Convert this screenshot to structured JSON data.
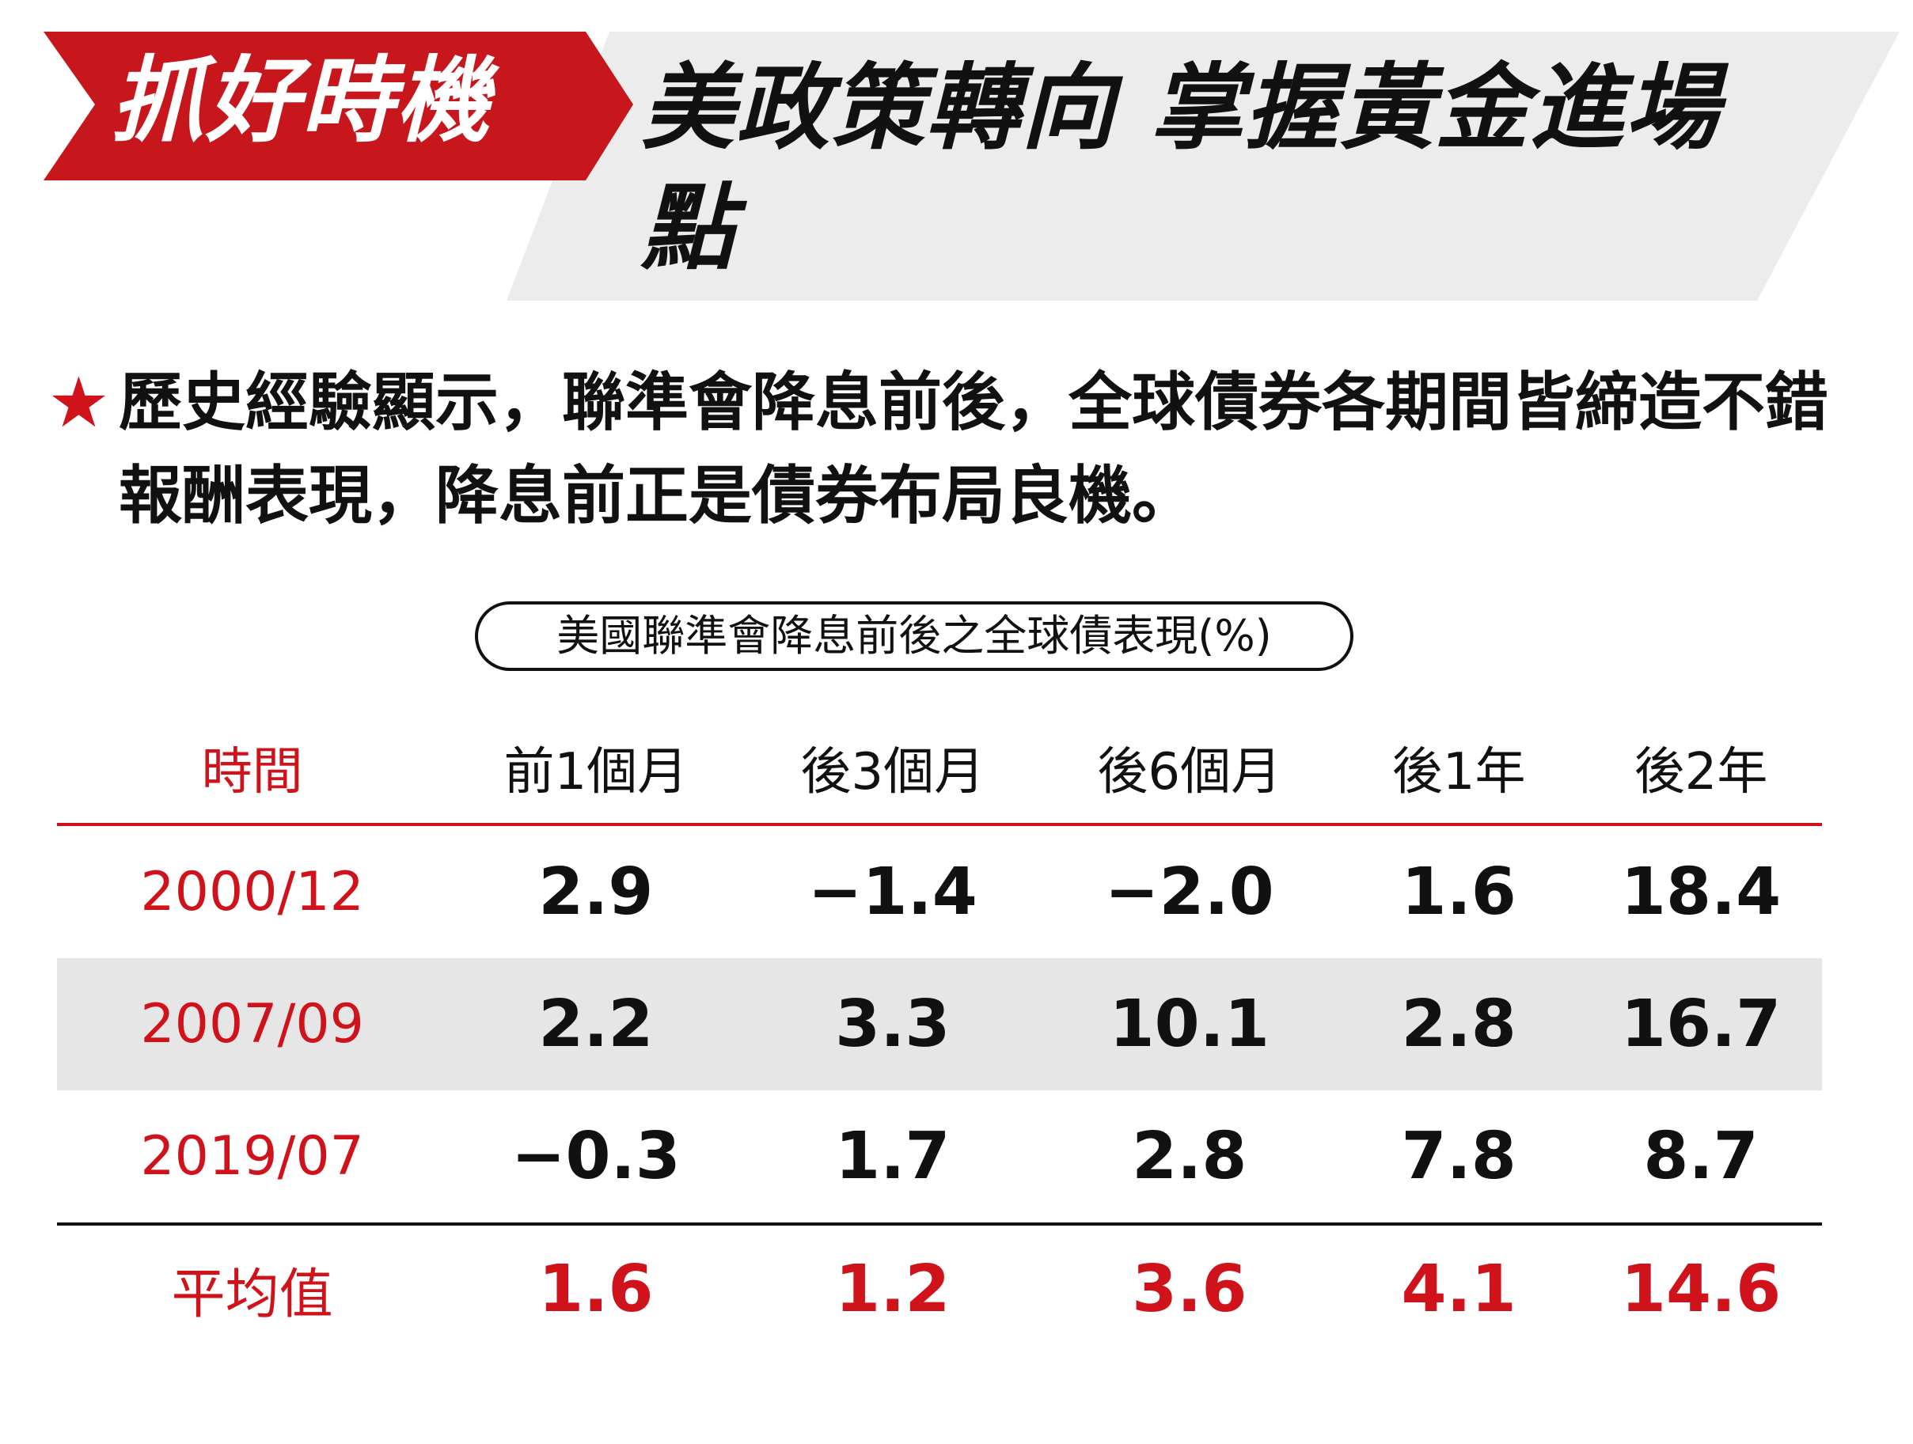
{
  "header": {
    "tag": "抓好時機",
    "headline": "美政策轉向  掌握黃金進場點",
    "colors": {
      "tag_bg": "#c8161d",
      "headline_bg": "#ececec"
    }
  },
  "lead": {
    "bullet_icon": "star-icon",
    "text": "歷史經驗顯示，聯準會降息前後，全球債券各期間皆締造不錯報酬表現，降息前正是債券布局良機。"
  },
  "table": {
    "caption": "美國聯準會降息前後之全球債表現(%)",
    "columns": [
      "時間",
      "前1個月",
      "後3個月",
      "後6個月",
      "後1年",
      "後2年"
    ],
    "rows": [
      {
        "time": "2000/12",
        "values": [
          "2.9",
          "−1.4",
          "−2.0",
          "1.6",
          "18.4"
        ]
      },
      {
        "time": "2007/09",
        "values": [
          "2.2",
          "3.3",
          "10.1",
          "2.8",
          "16.7"
        ]
      },
      {
        "time": "2019/07",
        "values": [
          "−0.3",
          "1.7",
          "2.8",
          "7.8",
          "8.7"
        ]
      }
    ],
    "average": {
      "label": "平均值",
      "values": [
        "1.6",
        "1.2",
        "3.6",
        "4.1",
        "14.6"
      ]
    },
    "colors": {
      "accent": "#d0121b",
      "shade": "#e6e6e6"
    }
  }
}
